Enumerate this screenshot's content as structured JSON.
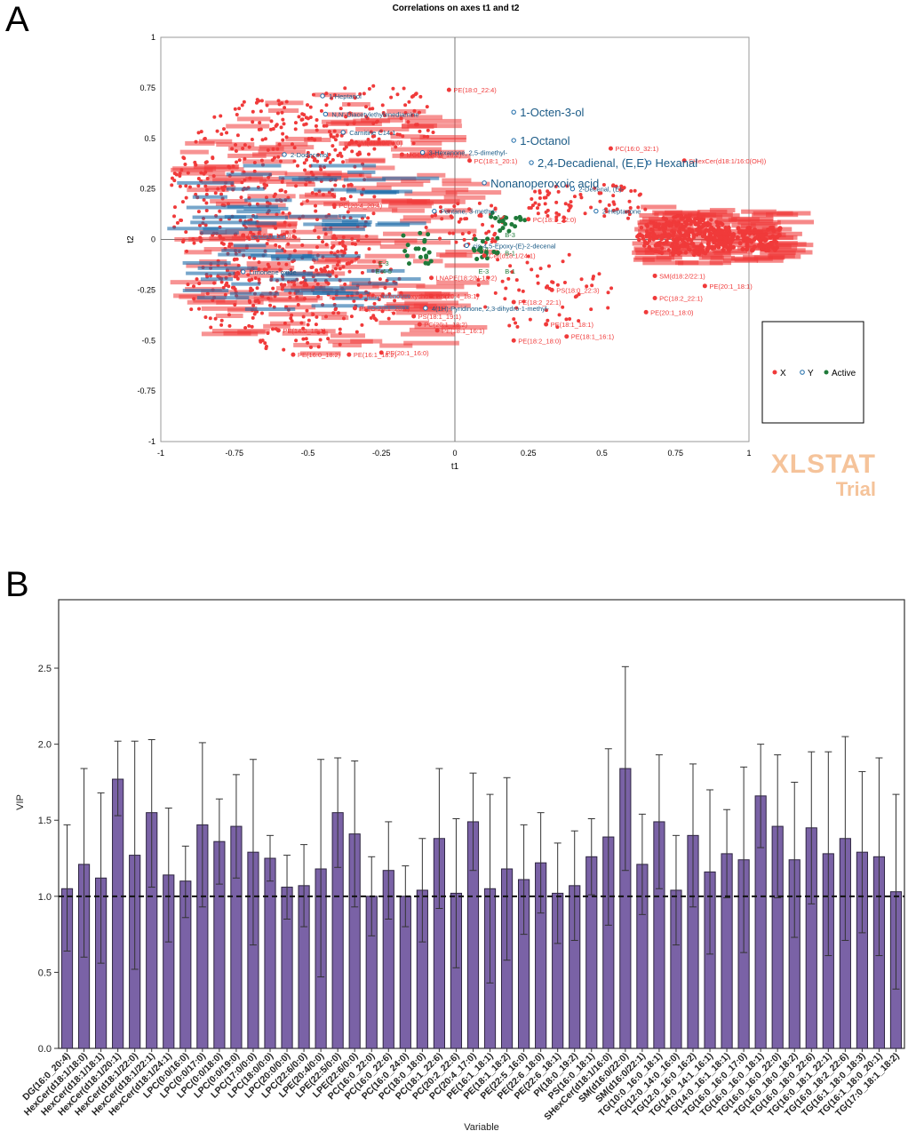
{
  "panels": {
    "a": "A",
    "b": "B"
  },
  "watermark": {
    "line1": "XLSTAT",
    "line2": "Trial"
  },
  "colors": {
    "x": "#f03a3a",
    "y": "#1d6aa8",
    "active": "#1f7a3a",
    "bar": "#7a62a6",
    "ylabel_text": "#1a5a86"
  },
  "chart_data": [
    {
      "type": "scatter",
      "title": "Correlations on axes t1 and t2",
      "xlabel": "t1",
      "ylabel": "t2",
      "xlim": [
        -1,
        1
      ],
      "ylim": [
        -1,
        1
      ],
      "xticks": [
        -1,
        -0.75,
        -0.5,
        -0.25,
        0,
        0.25,
        0.5,
        0.75,
        1
      ],
      "yticks": [
        -1,
        -0.75,
        -0.5,
        -0.25,
        0,
        0.25,
        0.5,
        0.75,
        1
      ],
      "legend": {
        "position": "right",
        "entries": [
          "X",
          "Y",
          "Active"
        ]
      },
      "y_vars": [
        {
          "label": "1-Octen-3-ol",
          "x": 0.2,
          "y": 0.63
        },
        {
          "label": "1-Octanol",
          "x": 0.2,
          "y": 0.49
        },
        {
          "label": "2,4-Decadienal, (E,E)-",
          "x": 0.26,
          "y": 0.38
        },
        {
          "label": "Nonanoperoxoic acid",
          "x": 0.1,
          "y": 0.28
        },
        {
          "label": "Hexanal",
          "x": 0.66,
          "y": 0.38
        },
        {
          "label": "2-Dodecenol",
          "x": -0.58,
          "y": 0.42
        },
        {
          "label": "N,N'-Diacetylethylenediamine",
          "x": -0.44,
          "y": 0.62
        },
        {
          "label": "3-Hexanone, 2,5-dimethyl-",
          "x": -0.11,
          "y": 0.43
        },
        {
          "label": "Pentane, 3-methyl-",
          "x": -0.07,
          "y": 0.14
        },
        {
          "label": "2-Decenal, (E)-",
          "x": 0.4,
          "y": 0.25
        },
        {
          "label": "4(1H)-Pyridinone, 2,3-dihydro-1-methyl-",
          "x": -0.1,
          "y": -0.34
        },
        {
          "label": "cis-4,5-Epoxy-(E)-2-decenal",
          "x": 0.04,
          "y": -0.03
        },
        {
          "label": "1-Heptanol",
          "x": -0.45,
          "y": 0.71
        },
        {
          "label": "Carnitine C14:1",
          "x": -0.38,
          "y": 0.53
        },
        {
          "label": "2-Heptanone",
          "x": 0.48,
          "y": 0.14
        },
        {
          "label": "Limonene oxide",
          "x": -0.72,
          "y": -0.16
        }
      ],
      "x_labels": [
        {
          "label": "PE(18:0_22:4)",
          "x": -0.02,
          "y": 0.74
        },
        {
          "label": "PC(16:0_32:1)",
          "x": 0.53,
          "y": 0.45
        },
        {
          "label": "SHexCer(d18:1/16:0(OH))",
          "x": 0.78,
          "y": 0.39
        },
        {
          "label": "SM(d18:0/20:0)",
          "x": -0.35,
          "y": 0.48
        },
        {
          "label": "MGDG(16:0_18:2)",
          "x": -0.18,
          "y": 0.42
        },
        {
          "label": "PC(18:1_20:1)",
          "x": 0.05,
          "y": 0.39
        },
        {
          "label": "Cer(d18:1/24:1)",
          "x": 0.1,
          "y": -0.08
        },
        {
          "label": "PS(18:0_22:3)",
          "x": 0.33,
          "y": -0.25
        },
        {
          "label": "SM(d18:2/22:1)",
          "x": 0.68,
          "y": -0.18
        },
        {
          "label": "PE(20:1_18:0)",
          "x": 0.65,
          "y": -0.36
        },
        {
          "label": "PE(18:1_16:1)",
          "x": 0.38,
          "y": -0.48
        },
        {
          "label": "PE(18:1_18:1)",
          "x": 0.31,
          "y": -0.42
        },
        {
          "label": "PC(20:1_18:2)",
          "x": -0.12,
          "y": -0.42
        },
        {
          "label": "PS(18:1_19:1)",
          "x": -0.14,
          "y": -0.38
        },
        {
          "label": "PE(18:2_18:0)",
          "x": 0.2,
          "y": -0.5
        },
        {
          "label": "Taurochenodeoxycholic acid",
          "x": -0.32,
          "y": -0.28
        },
        {
          "label": "LNAPE(18:2/N-18:2)",
          "x": -0.08,
          "y": -0.19
        },
        {
          "label": "PC(20:4_20:4)",
          "x": -0.41,
          "y": 0.17
        },
        {
          "label": "PC(16:0_18:0)",
          "x": -0.72,
          "y": 0.02
        },
        {
          "label": "PE(16:0_18:2)",
          "x": -0.55,
          "y": -0.57
        },
        {
          "label": "PE(20:1_16:0)",
          "x": -0.25,
          "y": -0.56
        },
        {
          "label": "PC(18:1_22:0)",
          "x": 0.25,
          "y": 0.1
        },
        {
          "label": "PE(18:2_22:1)",
          "x": 0.2,
          "y": -0.31
        },
        {
          "label": "PC(18:2_22:1)",
          "x": 0.68,
          "y": -0.29
        },
        {
          "label": "PE(20:1_18:1)",
          "x": 0.85,
          "y": -0.23
        },
        {
          "label": "PE(O-20:1_20:1)",
          "x": -0.34,
          "y": -0.34
        },
        {
          "label": "PE(14:0_18:1)",
          "x": -0.6,
          "y": -0.45
        },
        {
          "label": "PE(18:1_16:1)",
          "x": -0.06,
          "y": -0.45
        },
        {
          "label": "PE(16:1_18:2)",
          "x": -0.36,
          "y": -0.57
        },
        {
          "label": "PS(20:4_18:1)",
          "x": -0.08,
          "y": -0.28
        }
      ],
      "active_labels": [
        {
          "label": "E-3",
          "x": -0.26,
          "y": -0.13
        },
        {
          "label": "E-4-5",
          "x": -0.27,
          "y": -0.17
        },
        {
          "label": "B-1",
          "x": 0.17,
          "y": -0.08
        },
        {
          "label": "E-3",
          "x": 0.08,
          "y": -0.17
        },
        {
          "label": "B-1",
          "x": 0.17,
          "y": -0.17
        },
        {
          "label": "F-4",
          "x": 0.08,
          "y": -0.06
        },
        {
          "label": "B-3",
          "x": 0.17,
          "y": 0.01
        },
        {
          "label": "A-3",
          "x": 0.14,
          "y": 0.1
        }
      ]
    },
    {
      "type": "bar",
      "xlabel": "Variable",
      "ylabel": "VIP",
      "ylim": [
        0,
        2.95
      ],
      "yticks": [
        0.0,
        0.5,
        1.0,
        1.5,
        2.0,
        2.5
      ],
      "reference_line": 1.0,
      "categories": [
        "DG(16:0_20:4)",
        "HexCer(d18:1/18:0)",
        "HexCer(d18:1/18:1)",
        "HexCer(d18:1/20:1)",
        "HexCer(d18:1/22:0)",
        "HexCer(d18:1/22:1)",
        "HexCer(d18:1/24:1)",
        "LPC(0:0/16:0)",
        "LPC(0:0/17:0)",
        "LPC(0:0/18:0)",
        "LPC(0:0/19:0)",
        "LPC(17:0/0:0)",
        "LPC(18:0/0:0)",
        "LPC(20:0/0:0)",
        "LPC(22:6/0:0)",
        "LPE(20:4/0:0)",
        "LPE(22:5/0:0)",
        "LPE(22:6/0:0)",
        "PC(16:0_22:0)",
        "PC(16:0_22:6)",
        "PC(16:0_24:0)",
        "PC(18:0_18:0)",
        "PC(18:1_22:6)",
        "PC(20:2_22:6)",
        "PC(20:4_17:0)",
        "PE(16:1_18:1)",
        "PE(18:1_18:2)",
        "PE(22:5_16:0)",
        "PE(22:6_18:0)",
        "PE(22:6_18:1)",
        "PI(18:0_19:2)",
        "PS(16:0_18:1)",
        "SHexCer(d18:1/16:0)",
        "SM(d16:0/22:0)",
        "SM(d16:0/22:1)",
        "TG(10:0_16:0_18:1)",
        "TG(12:0_14:0_16:0)",
        "TG(12:0_16:0_16:2)",
        "TG(14:0_14:1_16:1)",
        "TG(14:0_16:1_18:1)",
        "TG(16:0_16:0_17:0)",
        "TG(16:0_16:0_18:1)",
        "TG(16:0_16:0_22:0)",
        "TG(16:0_18:0_18:2)",
        "TG(16:0_18:0_22:6)",
        "TG(16:0_18:1_22:1)",
        "TG(16:0_18:2_22:6)",
        "TG(16:1_18:0_18:3)",
        "TG(16:1_18:0_20:1)",
        "TG(17:0_18:1_18:2)"
      ],
      "values": [
        1.05,
        1.21,
        1.12,
        1.77,
        1.27,
        1.55,
        1.14,
        1.1,
        1.47,
        1.36,
        1.46,
        1.29,
        1.25,
        1.06,
        1.07,
        1.18,
        1.55,
        1.41,
        1.0,
        1.17,
        1.0,
        1.04,
        1.38,
        1.02,
        1.49,
        1.05,
        1.18,
        1.11,
        1.22,
        1.02,
        1.07,
        1.26,
        1.39,
        1.84,
        1.21,
        1.49,
        1.04,
        1.4,
        1.16,
        1.28,
        1.24,
        1.66,
        1.46,
        1.24,
        1.45,
        1.28,
        1.38,
        1.29,
        1.26,
        1.03
      ],
      "error_high": [
        1.47,
        1.84,
        1.68,
        2.02,
        2.02,
        2.03,
        1.58,
        1.33,
        2.01,
        1.64,
        1.8,
        1.9,
        1.4,
        1.27,
        1.34,
        1.9,
        1.91,
        1.89,
        1.26,
        1.49,
        1.2,
        1.38,
        1.84,
        1.51,
        1.81,
        1.67,
        1.78,
        1.47,
        1.55,
        1.35,
        1.43,
        1.51,
        1.97,
        2.51,
        1.54,
        1.93,
        1.4,
        1.87,
        1.7,
        1.57,
        1.85,
        2.0,
        1.93,
        1.75,
        1.95,
        1.95,
        2.05,
        1.82,
        1.91,
        1.67
      ],
      "error_low": [
        0.64,
        0.6,
        0.56,
        1.53,
        0.52,
        1.06,
        0.7,
        0.86,
        0.93,
        1.08,
        1.12,
        0.68,
        1.1,
        0.85,
        0.8,
        0.47,
        1.19,
        0.93,
        0.74,
        0.85,
        0.8,
        0.7,
        0.92,
        0.53,
        1.17,
        0.43,
        0.58,
        0.75,
        0.89,
        0.69,
        0.71,
        1.01,
        0.81,
        1.17,
        0.88,
        1.05,
        0.68,
        0.93,
        0.62,
        0.99,
        0.63,
        1.32,
        0.99,
        0.73,
        0.95,
        0.61,
        0.71,
        0.76,
        0.61,
        0.39
      ]
    }
  ]
}
